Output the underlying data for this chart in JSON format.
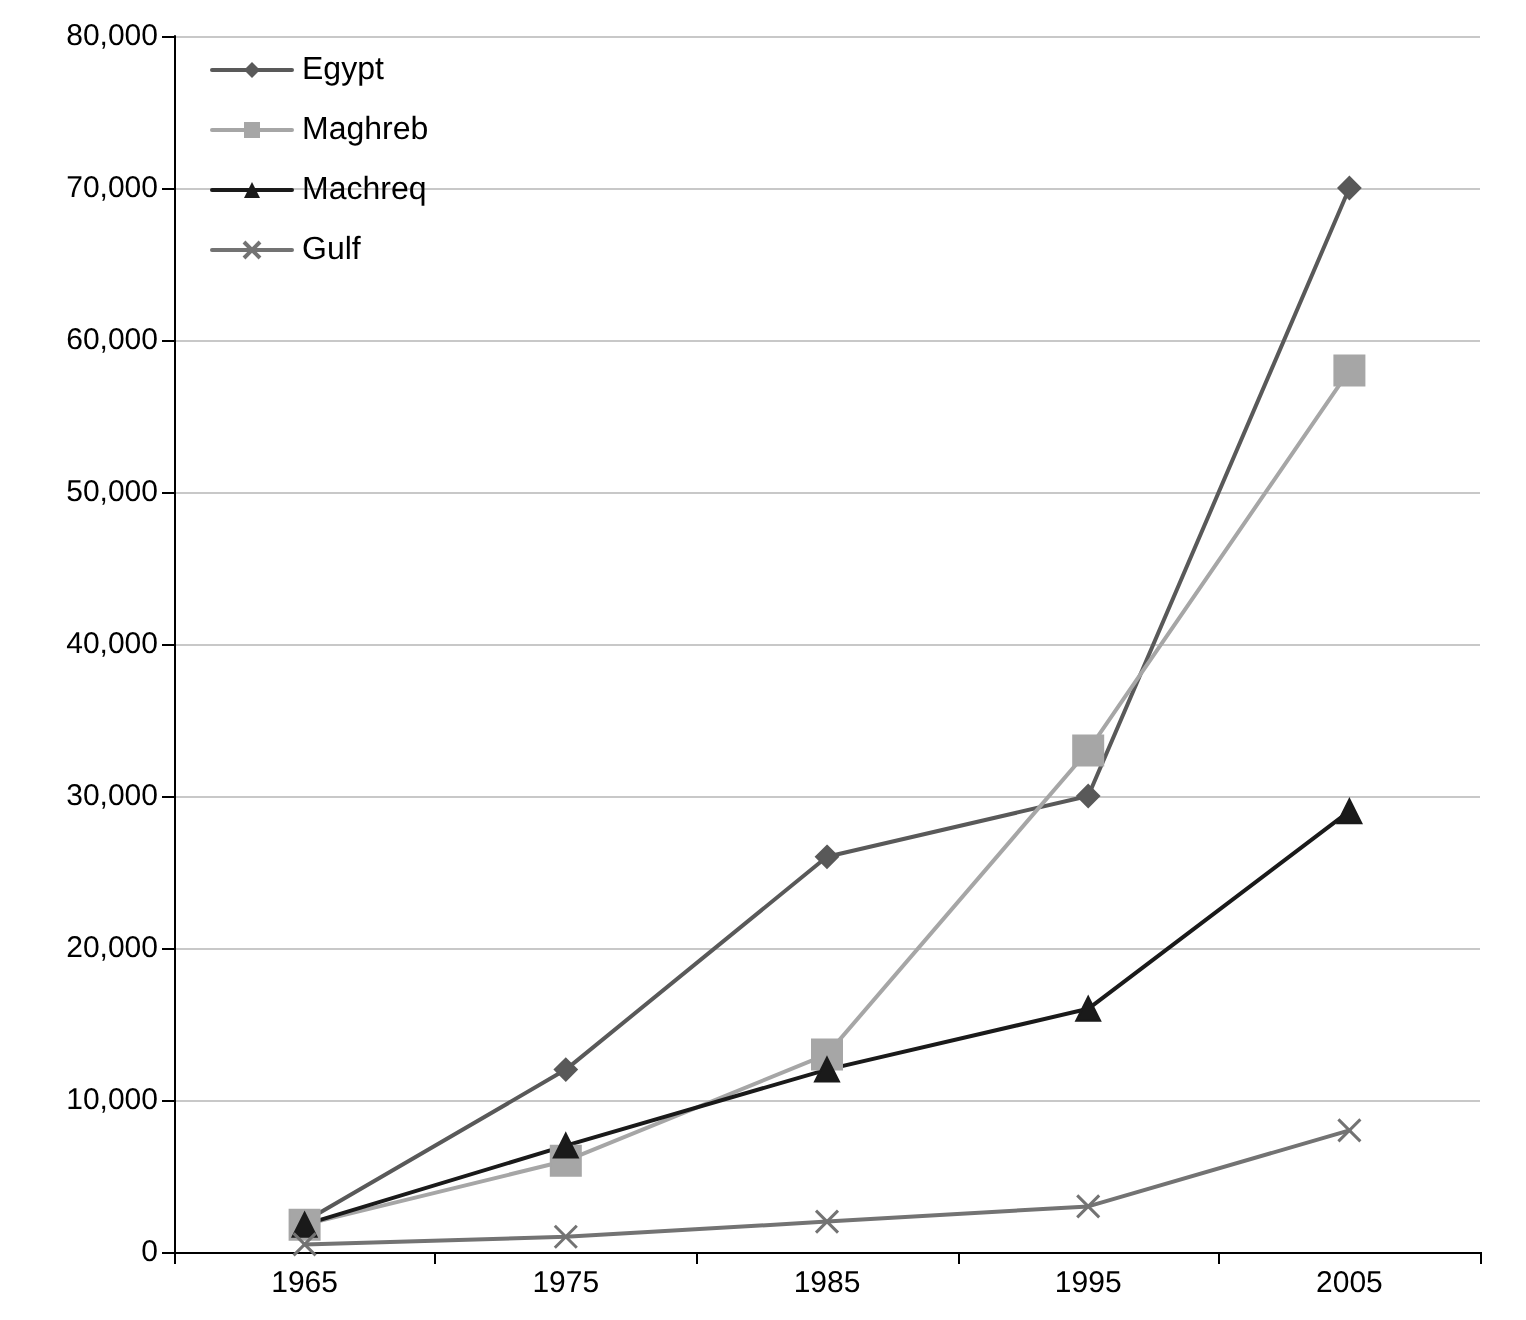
{
  "chart_data": {
    "type": "line",
    "categories": [
      "1965",
      "1975",
      "1985",
      "1995",
      "2005"
    ],
    "series": [
      {
        "name": "Egypt",
        "color": "#595959",
        "marker": "diamond",
        "values": [
          2000,
          12000,
          26000,
          30000,
          70000
        ]
      },
      {
        "name": "Maghreb",
        "color": "#a6a6a6",
        "marker": "square",
        "values": [
          1800,
          6000,
          13000,
          33000,
          58000
        ]
      },
      {
        "name": "Machreq",
        "color": "#1a1a1a",
        "marker": "triangle",
        "values": [
          1800,
          7000,
          12000,
          16000,
          29000
        ]
      },
      {
        "name": "Gulf",
        "color": "#737373",
        "marker": "cross",
        "values": [
          500,
          1000,
          2000,
          3000,
          8000
        ]
      }
    ],
    "ylim": [
      0,
      80000
    ],
    "yticks": [
      0,
      {
        "value": 10000,
        "label": "10,000"
      },
      {
        "value": 20000,
        "label": "20,000"
      },
      {
        "value": 30000,
        "label": "30,000"
      },
      {
        "value": 40000,
        "label": "40,000"
      },
      {
        "value": 50000,
        "label": "50,000"
      },
      {
        "value": 60000,
        "label": "60,000"
      },
      {
        "value": 70000,
        "label": "70,000"
      },
      {
        "value": 80000,
        "label": "80,000"
      }
    ],
    "grid": "y",
    "legend": "top left"
  }
}
